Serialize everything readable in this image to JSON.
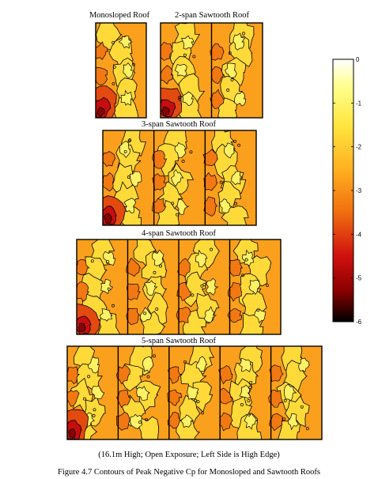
{
  "captions": {
    "note": "(16.1m High; Open Exposure; Left Side is High Edge)",
    "figure": "Figure 4.7 Contours of Peak Negative Cp for Monosloped and Sawtooth Roofs"
  },
  "chart_data": {
    "type": "heatmap",
    "title": "Contours of Peak Negative Cp for Monosloped and Sawtooth Roofs",
    "colorbar": {
      "label": "",
      "min": -6,
      "max": 0,
      "ticks": [
        0,
        -1,
        -2,
        -3,
        -4,
        -5,
        -6
      ],
      "tick_labels": [
        "0",
        "-1",
        "-2",
        "-3",
        "-4",
        "-5",
        "-6"
      ],
      "colors": [
        "#000000",
        "#8b0000",
        "#d01010",
        "#f07010",
        "#ffb020",
        "#ffe640",
        "#ffff90",
        "#ffffff"
      ]
    },
    "panels": [
      {
        "name": "Monosloped Roof",
        "spans": 1,
        "peak_cp_range": [
          -5,
          -1
        ]
      },
      {
        "name": "2-span Sawtooth Roof",
        "spans": 2,
        "peak_cp_range": [
          -5,
          -1
        ]
      },
      {
        "name": "3-span Sawtooth Roof",
        "spans": 3,
        "peak_cp_range": [
          -4.5,
          -1
        ]
      },
      {
        "name": "4-span Sawtooth Roof",
        "spans": 4,
        "peak_cp_range": [
          -4.5,
          -1
        ]
      },
      {
        "name": "5-span Sawtooth Roof",
        "spans": 5,
        "peak_cp_range": [
          -5,
          -1
        ]
      }
    ]
  }
}
